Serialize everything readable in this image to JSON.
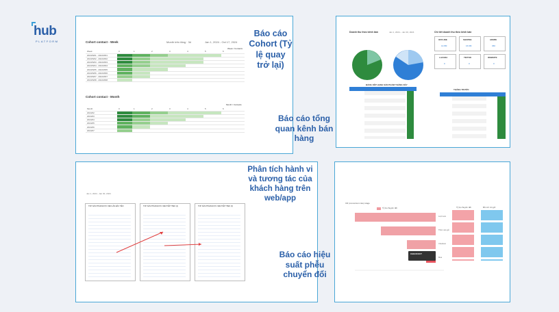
{
  "logo": {
    "word": "hub",
    "sub": "PLATFORM"
  },
  "captions": {
    "cohort": "Báo cáo Cohort (Tỷ lệ quay trở lại)",
    "channel": "Báo cáo tổng quan kênh bán hàng",
    "behavior": "Phân tích hành vi và tương tác của khách hàng trên web/app",
    "funnel": "Báo cáo hiệu suất phễu chuyển đổi"
  },
  "cohort_shot": {
    "title_week": "Cohort contact - Week",
    "title_month": "Cohort contact - Month",
    "filter": "Month trên tăng · 3ố",
    "date": "Jan 1, 2024 - Oct 17, 2024",
    "week_hdr": "Week / Contacts",
    "month_hdr": "Month / Contacts"
  },
  "channel_shot": {
    "pie_title": "Doanh thu theo kênh bán",
    "detail_title": "Chi tiết doanh thu theo kênh bán",
    "channels": [
      "OFFLINE",
      "SHOPEE",
      "ADMIN",
      "LAZADA",
      "TIKTOK",
      "WEBSITE"
    ],
    "rank_title": "BẢNG XẾP HẠNG SẢN PHẨM THÁNG NÀY",
    "rank2_title": "THÁNG TRƯỚC"
  },
  "behavior_shot": {
    "cols": [
      "TOP SẢN PHẨM ĐƯỢC XEM LẦN ĐẦU TIÊN",
      "TOP SẢN PHẨM ĐƯỢC XEM TIẾP THEO (2)",
      "TOP SẢN PHẨM ĐƯỢC XEM TIẾP THEO (3)"
    ]
  },
  "funnel_shot": {
    "title": "CR (conversion rate) stage",
    "legend": "Tỷ lệ chuyển đổi",
    "col2": "Tỷ lệ chuyển đổi",
    "col3": "Bỏ rơi/ rời giỏ",
    "tooltip": "CHECKOUT",
    "stages": [
      {
        "label": "Lượt xem",
        "value": 100
      },
      {
        "label": "Thêm vào giỏ",
        "value": 68
      },
      {
        "label": "Checkout",
        "value": 36
      },
      {
        "label": "Mua",
        "value": 12
      }
    ]
  }
}
